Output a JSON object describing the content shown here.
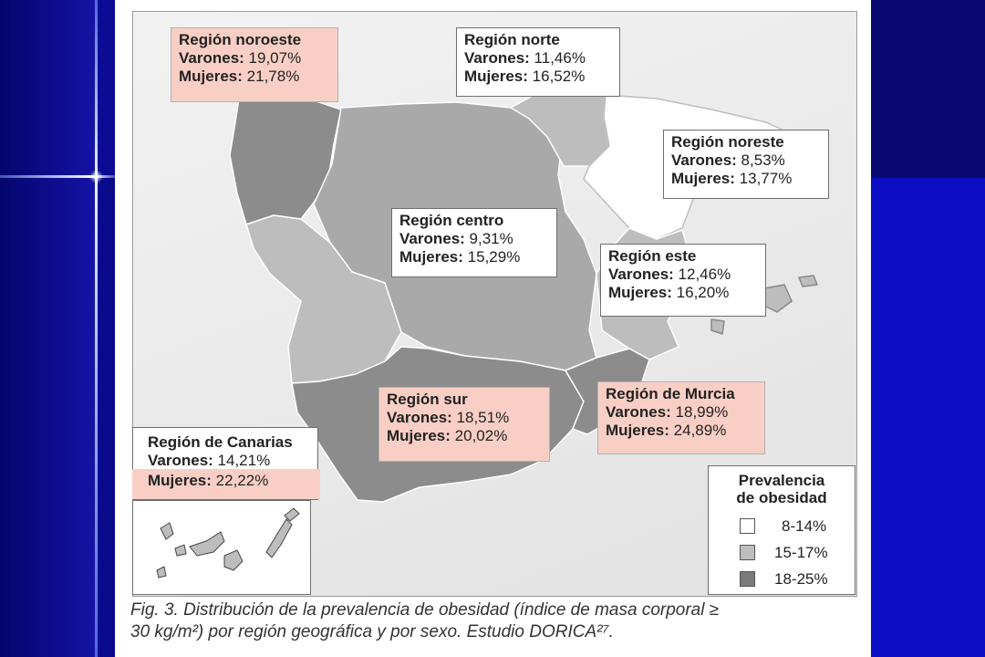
{
  "regions": {
    "noroeste": {
      "name": "Región noroeste",
      "varones": "19,07%",
      "mujeres": "21,78%",
      "fill": "#8c8c8c"
    },
    "norte": {
      "name": "Región norte",
      "varones": "11,46%",
      "mujeres": "16,52%",
      "fill": "#bdbdbd"
    },
    "noreste": {
      "name": "Región noreste",
      "varones": "8,53%",
      "mujeres": "13,77%",
      "fill": "#ffffff"
    },
    "centro": {
      "name": "Región centro",
      "varones": "9,31%",
      "mujeres": "15,29%",
      "fill": "#ffffff"
    },
    "este": {
      "name": "Región este",
      "varones": "12,46%",
      "mujeres": "16,20%",
      "fill": "#bdbdbd"
    },
    "sur": {
      "name": "Región sur",
      "varones": "18,51%",
      "mujeres": "20,02%",
      "fill": "#8c8c8c"
    },
    "murcia": {
      "name": "Región de Murcia",
      "varones": "18,99%",
      "mujeres": "24,89%",
      "fill": "#8c8c8c"
    },
    "canarias": {
      "name": "Región de Canarias",
      "varones": "14,21%",
      "mujeres": "22,22%",
      "fill": "#bdbdbd"
    }
  },
  "labels": {
    "varones": "Varones:",
    "mujeres": "Mujeres:"
  },
  "legend": {
    "title_line1": "Prevalencia",
    "title_line2": "de obesidad",
    "items": [
      {
        "label": "8-14%",
        "color": "#ffffff"
      },
      {
        "label": "15-17%",
        "color": "#bdbdbd"
      },
      {
        "label": "18-25%",
        "color": "#7a7a7a"
      }
    ]
  },
  "caption": {
    "line1": "Fig. 3. Distribución de la prevalencia de obesidad (índice de masa corporal ≥",
    "line2": "30 kg/m²) por región geográfica y por sexo. Estudio DORICA²⁷."
  }
}
